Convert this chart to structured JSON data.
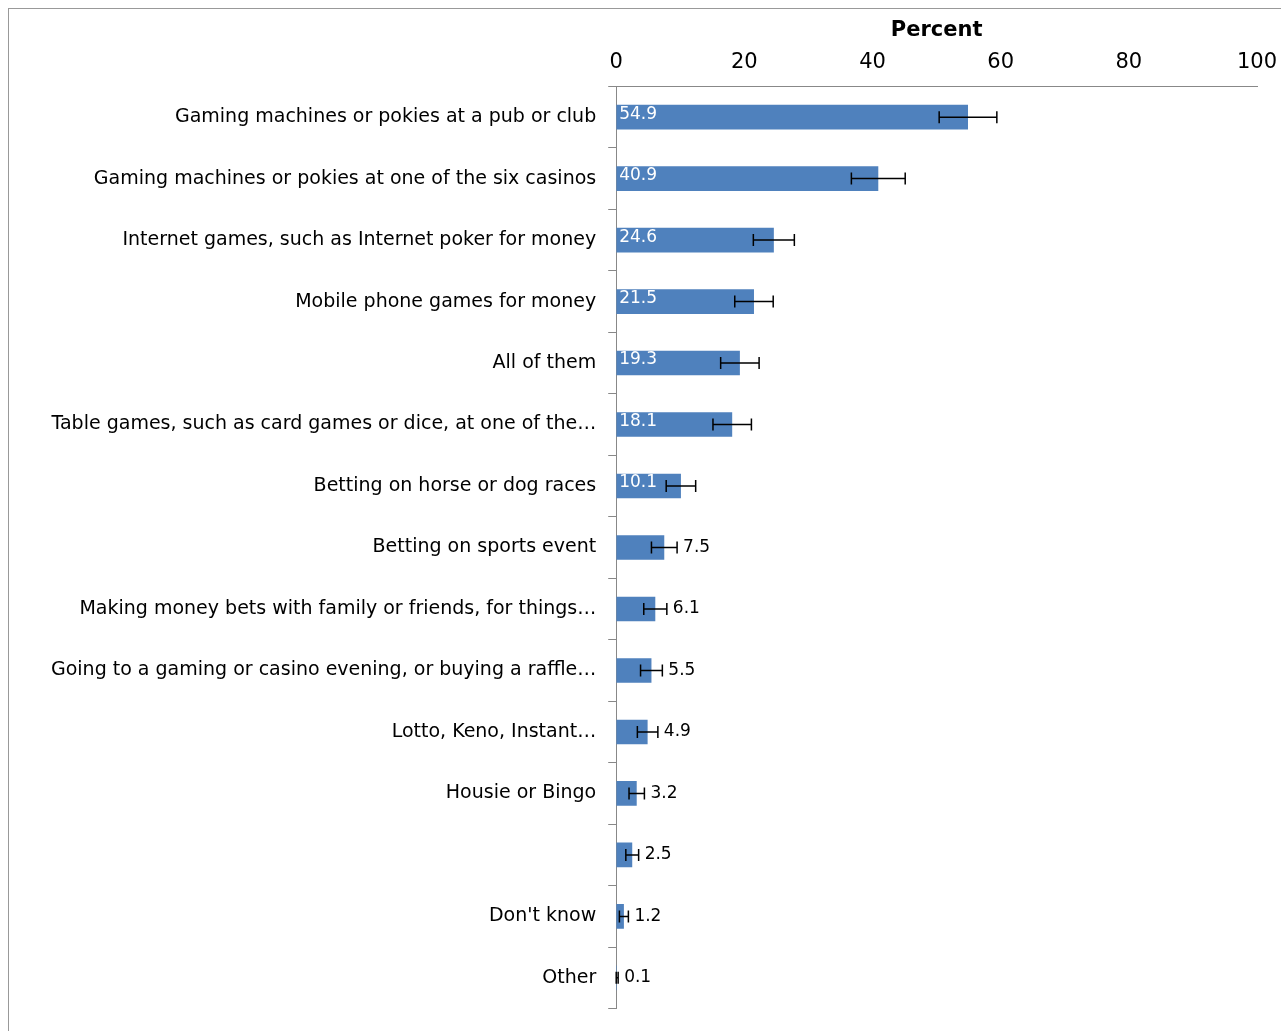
{
  "chart_data": {
    "type": "bar",
    "orientation": "horizontal",
    "xlabel": "Percent",
    "categories": [
      "Gaming machines or pokies at a pub or club",
      "Gaming machines or pokies at one of the six casinos",
      "Internet games, such as Internet poker for money",
      "Mobile phone games for money",
      "All of them",
      "Table games, such as card games or dice, at one of the…",
      "Betting on horse or dog races",
      "Betting on sports event",
      "Making money bets with family or friends, for things…",
      "Going to a gaming or casino evening, or buying a raffle…",
      "Lotto, Keno, Instant…",
      "Housie or Bingo",
      null,
      "Don't know",
      "Other"
    ],
    "values": [
      54.9,
      40.9,
      24.6,
      21.5,
      19.3,
      18.1,
      10.1,
      7.5,
      6.1,
      5.5,
      4.9,
      3.2,
      2.5,
      1.2,
      0.1
    ],
    "errors": [
      4.5,
      4.2,
      3.2,
      3,
      3,
      3,
      2.3,
      2,
      1.8,
      1.7,
      1.6,
      1.2,
      1,
      0.7,
      [
        0,
        0.3
      ]
    ],
    "color": "#4f81bd",
    "xlim": [
      0,
      100
    ],
    "xticks": [
      0,
      20,
      40,
      60,
      80,
      100
    ],
    "grid": false,
    "data_labels": true
  }
}
